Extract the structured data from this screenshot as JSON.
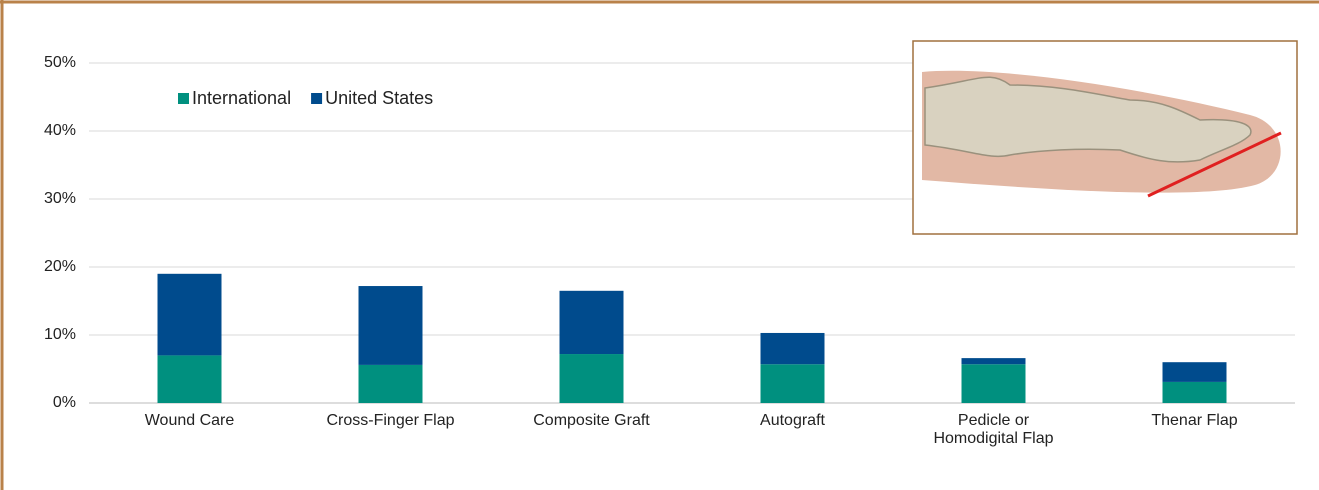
{
  "chart_data": {
    "type": "stacked_bar",
    "categories": [
      "Wound Care",
      "Cross-Finger Flap",
      "Composite Graft",
      "Autograft",
      "Pedicle or Homodigital Flap",
      "Thenar Flap"
    ],
    "series": [
      {
        "name": "International",
        "color": "#00907f",
        "values": [
          7.0,
          5.6,
          7.2,
          5.7,
          5.7,
          3.1
        ]
      },
      {
        "name": "United States",
        "color": "#004b8d",
        "values": [
          12.0,
          11.6,
          9.3,
          4.6,
          0.9,
          2.9
        ]
      }
    ],
    "ylim": [
      0,
      50
    ],
    "yticks": [
      {
        "value": 0,
        "label": "0%"
      },
      {
        "value": 10,
        "label": "10%"
      },
      {
        "value": 20,
        "label": "20%"
      },
      {
        "value": 30,
        "label": "30%"
      },
      {
        "value": 40,
        "label": "40%"
      },
      {
        "value": 50,
        "label": "50%"
      }
    ],
    "grid": true
  }
}
